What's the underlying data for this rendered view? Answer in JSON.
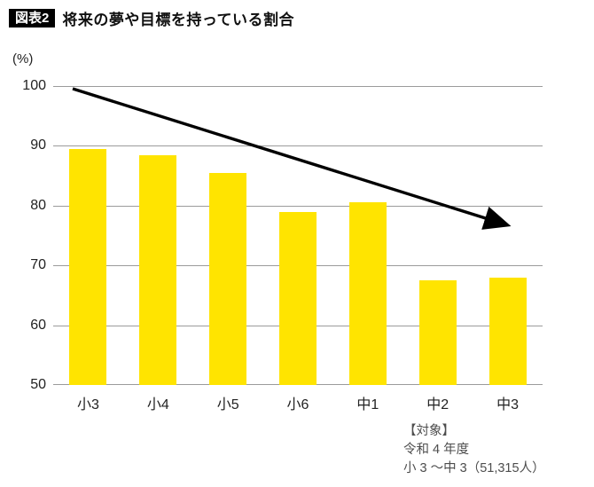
{
  "header": {
    "badge": "図表2",
    "title": "将来の夢や目標を持っている割合"
  },
  "chart_data": {
    "type": "bar",
    "title": "将来の夢や目標を持っている割合",
    "categories": [
      "小3",
      "小4",
      "小5",
      "小6",
      "中1",
      "中2",
      "中3"
    ],
    "values": [
      89.5,
      88.5,
      85.5,
      79.0,
      80.5,
      67.5,
      68.0
    ],
    "xlabel": "",
    "ylabel": "(%)",
    "ylim": [
      50,
      100
    ],
    "yticks": [
      50,
      60,
      70,
      80,
      90,
      100
    ],
    "grid": true,
    "legend": "none",
    "bar_color": "#FFE400",
    "gridline_color": "#9B9B9B",
    "annotations": [
      {
        "type": "arrow",
        "color": "#000000",
        "note": "declining trend from top-left to lower-right"
      }
    ]
  },
  "source_note": {
    "line1": "【対象】",
    "line2": "令和 4 年度",
    "line3": "小 3 ～中 3（51,315人）"
  }
}
